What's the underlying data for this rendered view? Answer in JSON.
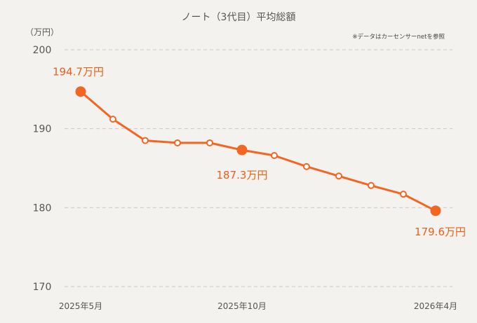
{
  "chart_data": {
    "type": "line",
    "title": "ノート（3代目）平均総額",
    "unit_label": "（万円）",
    "source_note": "※データはカーセンサーnetを参照",
    "ylim": [
      170,
      200
    ],
    "yticks": [
      200,
      190,
      180,
      170
    ],
    "grid": true,
    "x": [
      "2025年5月",
      "2025年6月",
      "2025年7月",
      "2025年8月",
      "2025年9月",
      "2025年10月",
      "2025年11月",
      "2025年12月",
      "2026年1月",
      "2026年2月",
      "2026年3月",
      "2026年4月"
    ],
    "x_tick_labels": [
      "2025年5月",
      "2025年10月",
      "2026年4月"
    ],
    "series": [
      {
        "values": [
          194.7,
          191.2,
          188.5,
          188.2,
          188.2,
          187.3,
          186.6,
          185.2,
          184.0,
          182.8,
          181.7,
          179.6
        ],
        "color": "#f26522"
      }
    ],
    "highlight_indices": [
      0,
      5,
      11
    ],
    "annotations": [
      "194.7万円",
      "187.3万円",
      "179.6万円"
    ]
  }
}
